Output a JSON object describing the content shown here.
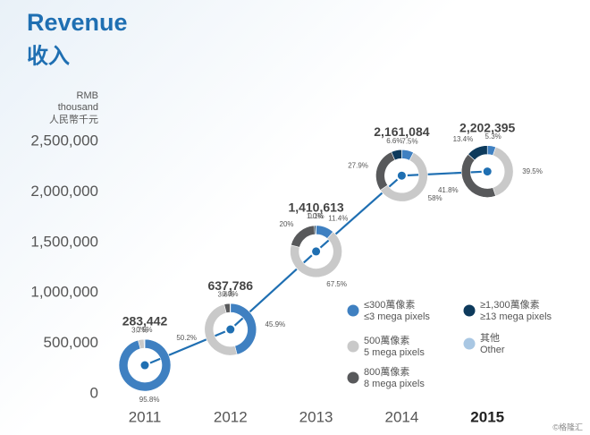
{
  "chart_data": {
    "type": "line",
    "title": "Revenue",
    "subtitle": "收入",
    "y_label": [
      "RMB",
      "thousand",
      "人民幣千元"
    ],
    "categories": [
      "2011",
      "2012",
      "2013",
      "2014",
      "2015"
    ],
    "values": [
      283442,
      637786,
      1410613,
      2161084,
      2202395
    ],
    "value_labels": [
      "283,442",
      "637,786",
      "1,410,613",
      "2,161,084",
      "2,202,395"
    ],
    "color": "#1f6fb2",
    "ylim": [
      0,
      2500000
    ],
    "yticks": [
      0,
      {
        "value": 500000,
        "label": "500,000"
      },
      {
        "value": 1000000,
        "label": "1,000,000"
      },
      {
        "value": 1500000,
        "label": "1,500,000"
      },
      {
        "value": 2000000,
        "label": "2,000,000"
      },
      {
        "value": 2500000,
        "label": "2,500,000"
      }
    ],
    "segments": [
      {
        "name": "≤300萬像素",
        "name_en": "≤3 mega pixels",
        "color": "#3f80c1",
        "values": [
          95.8,
          45.9,
          11.4,
          7.5,
          5.3
        ],
        "value_labels": [
          "95.8%",
          "45.9%",
          "11.4%",
          "7.5%",
          "5.3%"
        ]
      },
      {
        "name": "500萬像素",
        "name_en": "5 mega pixels",
        "color": "#c9c9c9",
        "values": [
          3.7,
          50.2,
          67.5,
          58,
          39.5
        ],
        "value_labels": [
          "3.7%",
          "50.2%",
          "67.5%",
          "58%",
          "39.5%"
        ]
      },
      {
        "name": "800萬像素",
        "name_en": "8 mega pixels",
        "color": "#58595b",
        "values": [
          null,
          3.6,
          20,
          27.9,
          41.8
        ],
        "value_labels": [
          null,
          "3.6%",
          "20%",
          "27.9%",
          "41.8%"
        ]
      },
      {
        "name": "≥1,300萬像素",
        "name_en": "≥13 mega pixels",
        "color": "#0d3a5c",
        "values": [
          null,
          null,
          1.0,
          6.6,
          13.4
        ],
        "value_labels": [
          null,
          null,
          "1.0%",
          "6.6%",
          "13.4%"
        ]
      },
      {
        "name": "其他",
        "name_en": "Other",
        "color": "#a9c7e3",
        "values": [
          0.5,
          0.3,
          0.1,
          null,
          null
        ],
        "value_labels": [
          "0.5%",
          "0.3%",
          "0.1%",
          null,
          null
        ]
      }
    ],
    "watermark": "©格隆汇"
  }
}
